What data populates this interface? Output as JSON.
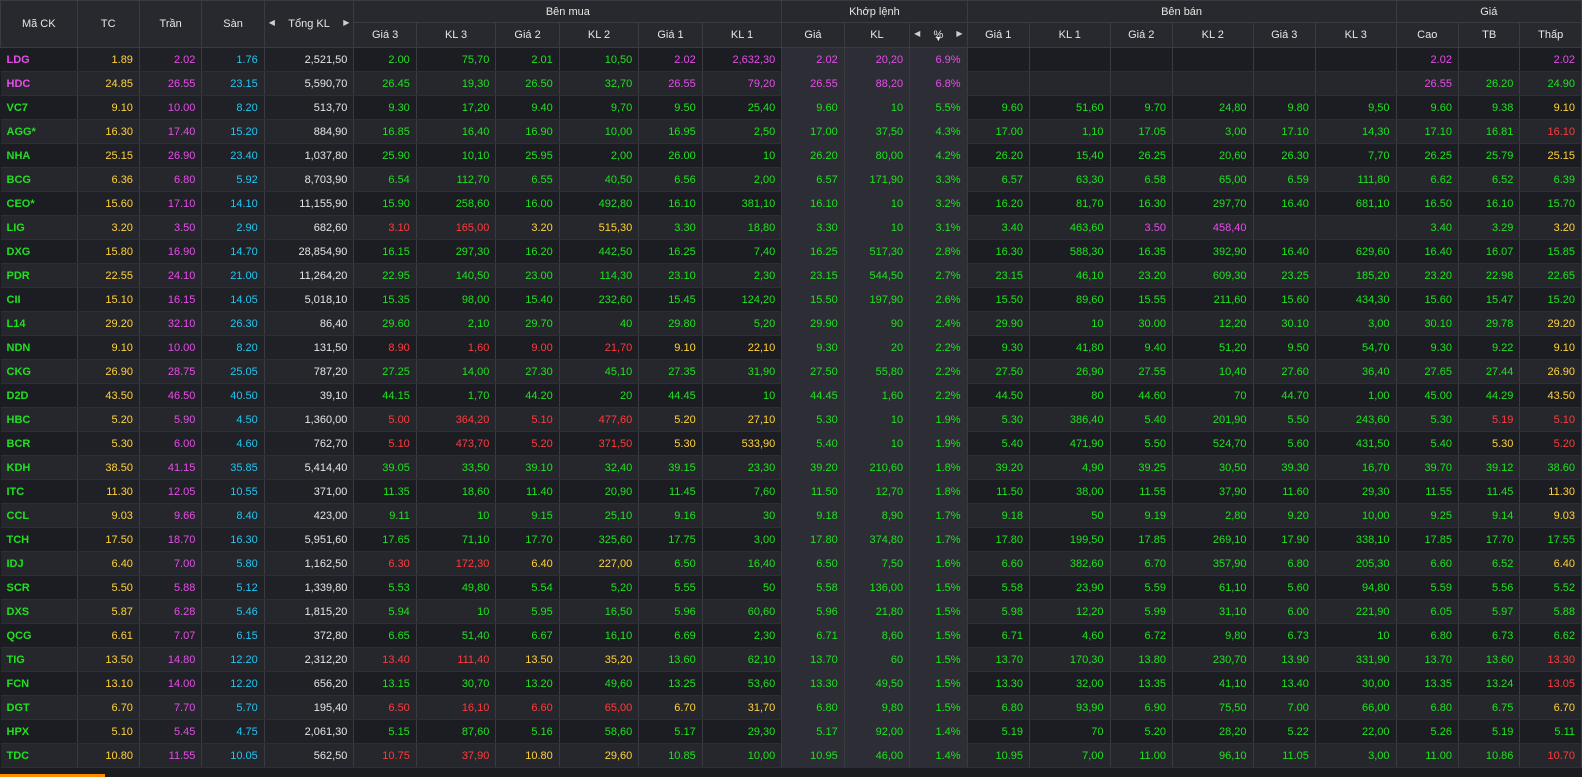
{
  "header": {
    "symbol": "Mã CK",
    "ref": "TC",
    "ceil": "Trần",
    "floor": "Sàn",
    "total_vol": "Tổng KL",
    "buy_group": "Bên mua",
    "match_group": "Khớp lệnh",
    "sell_group": "Bên bán",
    "price_group": "Giá",
    "buy_cols": [
      "Giá 3",
      "KL 3",
      "Giá 2",
      "KL 2",
      "Giá 1",
      "KL 1"
    ],
    "match_cols": [
      "Giá",
      "KL",
      "%"
    ],
    "sell_cols": [
      "Giá 1",
      "KL 1",
      "Giá 2",
      "KL 2",
      "Giá 3",
      "KL 3"
    ],
    "price_cols": [
      "Cao",
      "TB",
      "Thấp"
    ],
    "left_arrow": "◀",
    "right_arrow": "▶",
    "sort_desc": "▼"
  },
  "colors": {
    "green": "#20e020",
    "red": "#ff3b3b",
    "yellow": "#ffd33a",
    "purple": "#e74ce9",
    "cyan": "#22c6f2",
    "white": "#e6e6e6",
    "accent_bar": "#ff8a00"
  },
  "rows": [
    {
      "s": "LDG",
      "tc": "1.89",
      "ceil": "2.02",
      "floor": "1.76",
      "vol": "2,521,50",
      "sc": "p",
      "c": [
        "2.00",
        "75,70",
        "2.01",
        "10,50",
        "2.02",
        "2,632,30",
        "2.02",
        "20,20",
        "6.9%",
        "",
        "",
        "",
        "",
        "",
        "",
        "2.02",
        "",
        "2.02"
      ],
      "k": "gggggpppppp------p-p"
    },
    {
      "s": "HDC",
      "tc": "24.85",
      "ceil": "26.55",
      "floor": "23.15",
      "vol": "5,590,70",
      "sc": "p",
      "c": [
        "26.45",
        "19,30",
        "26.50",
        "32,70",
        "26.55",
        "79,20",
        "26.55",
        "88,20",
        "6.8%",
        "",
        "",
        "",
        "",
        "",
        "",
        "26.55",
        "26.20",
        "24.90"
      ],
      "k": "ggggpppppp------pgg"
    },
    {
      "s": "VC7",
      "tc": "9.10",
      "ceil": "10.00",
      "floor": "8.20",
      "vol": "513,70",
      "sc": "g",
      "c": [
        "9.30",
        "17,20",
        "9.40",
        "9,70",
        "9.50",
        "25,40",
        "9.60",
        "10",
        "5.5%",
        "9.60",
        "51,60",
        "9.70",
        "24,80",
        "9.80",
        "9,50",
        "9.60",
        "9.38",
        "9.10"
      ],
      "k": "gggggggggggggggggggy"
    },
    {
      "s": "AGG*",
      "tc": "16.30",
      "ceil": "17.40",
      "floor": "15.20",
      "vol": "884,90",
      "sc": "g",
      "c": [
        "16.85",
        "16,40",
        "16.90",
        "10,00",
        "16.95",
        "2,50",
        "17.00",
        "37,50",
        "4.3%",
        "17.00",
        "1,10",
        "17.05",
        "3,00",
        "17.10",
        "14,30",
        "17.10",
        "16.81",
        "16.10"
      ],
      "k": "ggggggggggggggggggr"
    },
    {
      "s": "NHA",
      "tc": "25.15",
      "ceil": "26.90",
      "floor": "23.40",
      "vol": "1,037,80",
      "sc": "g",
      "c": [
        "25.90",
        "10,10",
        "25.95",
        "2,00",
        "26.00",
        "10",
        "26.20",
        "80,00",
        "4.2%",
        "26.20",
        "15,40",
        "26.25",
        "20,60",
        "26.30",
        "7,70",
        "26.25",
        "25.79",
        "25.15"
      ],
      "k": "ggggggggggggggggggy"
    },
    {
      "s": "BCG",
      "tc": "6.36",
      "ceil": "6.80",
      "floor": "5.92",
      "vol": "8,703,90",
      "sc": "g",
      "c": [
        "6.54",
        "112,70",
        "6.55",
        "40,50",
        "6.56",
        "2,00",
        "6.57",
        "171,90",
        "3.3%",
        "6.57",
        "63,30",
        "6.58",
        "65,00",
        "6.59",
        "111,80",
        "6.62",
        "6.52",
        "6.39"
      ],
      "k": "ggggggggggggggggggg"
    },
    {
      "s": "CEO*",
      "tc": "15.60",
      "ceil": "17.10",
      "floor": "14.10",
      "vol": "11,155,90",
      "sc": "g",
      "c": [
        "15.90",
        "258,60",
        "16.00",
        "492,80",
        "16.10",
        "381,10",
        "16.10",
        "10",
        "3.2%",
        "16.20",
        "81,70",
        "16.30",
        "297,70",
        "16.40",
        "681,10",
        "16.50",
        "16.10",
        "15.70"
      ],
      "k": "ggggggggggggggggggg"
    },
    {
      "s": "LIG",
      "tc": "3.20",
      "ceil": "3.50",
      "floor": "2.90",
      "vol": "682,60",
      "sc": "g",
      "c": [
        "3.10",
        "165,00",
        "3.20",
        "515,30",
        "3.30",
        "18,80",
        "3.30",
        "10",
        "3.1%",
        "3.40",
        "463,60",
        "3.50",
        "458,40",
        "",
        "",
        "3.40",
        "3.29",
        "3.20"
      ],
      "k": "rryygggggggggpp--ggy"
    },
    {
      "s": "DXG",
      "tc": "15.80",
      "ceil": "16.90",
      "floor": "14.70",
      "vol": "28,854,90",
      "sc": "g",
      "c": [
        "16.15",
        "297,30",
        "16.20",
        "442,50",
        "16.25",
        "7,40",
        "16.25",
        "517,30",
        "2.8%",
        "16.30",
        "588,30",
        "16.35",
        "392,90",
        "16.40",
        "629,60",
        "16.40",
        "16.07",
        "15.85"
      ],
      "k": "ggggggggggggggggggg"
    },
    {
      "s": "PDR",
      "tc": "22.55",
      "ceil": "24.10",
      "floor": "21.00",
      "vol": "11,264,20",
      "sc": "g",
      "c": [
        "22.95",
        "140,50",
        "23.00",
        "114,30",
        "23.10",
        "2,30",
        "23.15",
        "544,50",
        "2.7%",
        "23.15",
        "46,10",
        "23.20",
        "609,30",
        "23.25",
        "185,20",
        "23.20",
        "22.98",
        "22.65"
      ],
      "k": "ggggggggggggggggggg"
    },
    {
      "s": "CII",
      "tc": "15.10",
      "ceil": "16.15",
      "floor": "14.05",
      "vol": "5,018,10",
      "sc": "g",
      "c": [
        "15.35",
        "98,00",
        "15.40",
        "232,60",
        "15.45",
        "124,20",
        "15.50",
        "197,90",
        "2.6%",
        "15.50",
        "89,60",
        "15.55",
        "211,60",
        "15.60",
        "434,30",
        "15.60",
        "15.47",
        "15.20"
      ],
      "k": "ggggggggggggggggggg"
    },
    {
      "s": "L14",
      "tc": "29.20",
      "ceil": "32.10",
      "floor": "26.30",
      "vol": "86,40",
      "sc": "g",
      "c": [
        "29.60",
        "2,10",
        "29.70",
        "40",
        "29.80",
        "5,20",
        "29.90",
        "90",
        "2.4%",
        "29.90",
        "10",
        "30.00",
        "12,20",
        "30.10",
        "3,00",
        "30.10",
        "29.78",
        "29.20"
      ],
      "k": "ggggggggggggggggggy"
    },
    {
      "s": "NDN",
      "tc": "9.10",
      "ceil": "10.00",
      "floor": "8.20",
      "vol": "131,50",
      "sc": "g",
      "c": [
        "8.90",
        "1,60",
        "9.00",
        "21,70",
        "9.10",
        "22,10",
        "9.30",
        "20",
        "2.2%",
        "9.30",
        "41,80",
        "9.40",
        "51,20",
        "9.50",
        "54,70",
        "9.30",
        "9.22",
        "9.10"
      ],
      "k": "rrrryyggggggggggggggy"
    },
    {
      "s": "CKG",
      "tc": "26.90",
      "ceil": "28.75",
      "floor": "25.05",
      "vol": "787,20",
      "sc": "g",
      "c": [
        "27.25",
        "14,00",
        "27.30",
        "45,10",
        "27.35",
        "31,90",
        "27.50",
        "55,80",
        "2.2%",
        "27.50",
        "26,90",
        "27.55",
        "10,40",
        "27.60",
        "36,40",
        "27.65",
        "27.44",
        "26.90"
      ],
      "k": "ggggggggggggggggggy"
    },
    {
      "s": "D2D",
      "tc": "43.50",
      "ceil": "46.50",
      "floor": "40.50",
      "vol": "39,10",
      "sc": "g",
      "c": [
        "44.15",
        "1,70",
        "44.20",
        "20",
        "44.45",
        "10",
        "44.45",
        "1,60",
        "2.2%",
        "44.50",
        "80",
        "44.60",
        "70",
        "44.70",
        "1,00",
        "45.00",
        "44.29",
        "43.50"
      ],
      "k": "ggggggggggggggggggy"
    },
    {
      "s": "HBC",
      "tc": "5.20",
      "ceil": "5.90",
      "floor": "4.50",
      "vol": "1,360,00",
      "sc": "g",
      "c": [
        "5.00",
        "364,20",
        "5.10",
        "477,60",
        "5.20",
        "27,10",
        "5.30",
        "10",
        "1.9%",
        "5.30",
        "386,40",
        "5.40",
        "201,90",
        "5.50",
        "243,60",
        "5.30",
        "5.19",
        "5.10"
      ],
      "k": "rrrryyggggggggggggrr"
    },
    {
      "s": "BCR",
      "tc": "5.30",
      "ceil": "6.00",
      "floor": "4.60",
      "vol": "762,70",
      "sc": "g",
      "c": [
        "5.10",
        "473,70",
        "5.20",
        "371,50",
        "5.30",
        "533,90",
        "5.40",
        "10",
        "1.9%",
        "5.40",
        "471,90",
        "5.50",
        "524,70",
        "5.60",
        "431,50",
        "5.40",
        "5.30",
        "5.20"
      ],
      "k": "rrrryygggggggggggggyr"
    },
    {
      "s": "KDH",
      "tc": "38.50",
      "ceil": "41.15",
      "floor": "35.85",
      "vol": "5,414,40",
      "sc": "g",
      "c": [
        "39.05",
        "33,50",
        "39.10",
        "32,40",
        "39.15",
        "23,30",
        "39.20",
        "210,60",
        "1.8%",
        "39.20",
        "4,90",
        "39.25",
        "30,50",
        "39.30",
        "16,70",
        "39.70",
        "39.12",
        "38.60"
      ],
      "k": "ggggggggggggggggggg"
    },
    {
      "s": "ITC",
      "tc": "11.30",
      "ceil": "12.05",
      "floor": "10.55",
      "vol": "371,00",
      "sc": "g",
      "c": [
        "11.35",
        "18,60",
        "11.40",
        "20,90",
        "11.45",
        "7,60",
        "11.50",
        "12,70",
        "1.8%",
        "11.50",
        "38,00",
        "11.55",
        "37,90",
        "11.60",
        "29,30",
        "11.55",
        "11.45",
        "11.30"
      ],
      "k": "ggggggggggggggggggy"
    },
    {
      "s": "CCL",
      "tc": "9.03",
      "ceil": "9.66",
      "floor": "8.40",
      "vol": "423,00",
      "sc": "g",
      "c": [
        "9.11",
        "10",
        "9.15",
        "25,10",
        "9.16",
        "30",
        "9.18",
        "8,90",
        "1.7%",
        "9.18",
        "50",
        "9.19",
        "2,80",
        "9.20",
        "10,00",
        "9.25",
        "9.14",
        "9.03"
      ],
      "k": "ggggggggggggggggggy"
    },
    {
      "s": "TCH",
      "tc": "17.50",
      "ceil": "18.70",
      "floor": "16.30",
      "vol": "5,951,60",
      "sc": "g",
      "c": [
        "17.65",
        "71,10",
        "17.70",
        "325,60",
        "17.75",
        "3,00",
        "17.80",
        "374,80",
        "1.7%",
        "17.80",
        "199,50",
        "17.85",
        "269,10",
        "17.90",
        "338,10",
        "17.85",
        "17.70",
        "17.55"
      ],
      "k": "ggggggggggggggggggg"
    },
    {
      "s": "IDJ",
      "tc": "6.40",
      "ceil": "7.00",
      "floor": "5.80",
      "vol": "1,162,50",
      "sc": "g",
      "c": [
        "6.30",
        "172,30",
        "6.40",
        "227,00",
        "6.50",
        "16,40",
        "6.50",
        "7,50",
        "1.6%",
        "6.60",
        "382,60",
        "6.70",
        "357,90",
        "6.80",
        "205,30",
        "6.60",
        "6.52",
        "6.40"
      ],
      "k": "rryyggggggggggggggy"
    },
    {
      "s": "SCR",
      "tc": "5.50",
      "ceil": "5.88",
      "floor": "5.12",
      "vol": "1,339,80",
      "sc": "g",
      "c": [
        "5.53",
        "49,80",
        "5.54",
        "5,20",
        "5.55",
        "50",
        "5.58",
        "136,00",
        "1.5%",
        "5.58",
        "23,90",
        "5.59",
        "61,10",
        "5.60",
        "94,80",
        "5.59",
        "5.56",
        "5.52"
      ],
      "k": "ggggggggggggggggggg"
    },
    {
      "s": "DXS",
      "tc": "5.87",
      "ceil": "6.28",
      "floor": "5.46",
      "vol": "1,815,20",
      "sc": "g",
      "c": [
        "5.94",
        "10",
        "5.95",
        "16,50",
        "5.96",
        "60,60",
        "5.96",
        "21,80",
        "1.5%",
        "5.98",
        "12,20",
        "5.99",
        "31,10",
        "6.00",
        "221,90",
        "6.05",
        "5.97",
        "5.88"
      ],
      "k": "ggggggggggggggggggg"
    },
    {
      "s": "QCG",
      "tc": "6.61",
      "ceil": "7.07",
      "floor": "6.15",
      "vol": "372,80",
      "sc": "g",
      "c": [
        "6.65",
        "51,40",
        "6.67",
        "16,10",
        "6.69",
        "2,30",
        "6.71",
        "8,60",
        "1.5%",
        "6.71",
        "4,60",
        "6.72",
        "9,80",
        "6.73",
        "10",
        "6.80",
        "6.73",
        "6.62"
      ],
      "k": "ggggggggggggggggggg"
    },
    {
      "s": "TIG",
      "tc": "13.50",
      "ceil": "14.80",
      "floor": "12.20",
      "vol": "2,312,20",
      "sc": "g",
      "c": [
        "13.40",
        "111,40",
        "13.50",
        "35,20",
        "13.60",
        "62,10",
        "13.70",
        "60",
        "1.5%",
        "13.70",
        "170,30",
        "13.80",
        "230,70",
        "13.90",
        "331,90",
        "13.70",
        "13.60",
        "13.30"
      ],
      "k": "rryyggggggggggggggr"
    },
    {
      "s": "FCN",
      "tc": "13.10",
      "ceil": "14.00",
      "floor": "12.20",
      "vol": "656,20",
      "sc": "g",
      "c": [
        "13.15",
        "30,70",
        "13.20",
        "49,60",
        "13.25",
        "53,60",
        "13.30",
        "49,50",
        "1.5%",
        "13.30",
        "32,00",
        "13.35",
        "41,10",
        "13.40",
        "30,00",
        "13.35",
        "13.24",
        "13.05"
      ],
      "k": "ggggggggggggggggggr"
    },
    {
      "s": "DGT",
      "tc": "6.70",
      "ceil": "7.70",
      "floor": "5.70",
      "vol": "195,40",
      "sc": "g",
      "c": [
        "6.50",
        "16,10",
        "6.60",
        "65,00",
        "6.70",
        "31,70",
        "6.80",
        "9,80",
        "1.5%",
        "6.80",
        "93,90",
        "6.90",
        "75,50",
        "7.00",
        "66,00",
        "6.80",
        "6.75",
        "6.70"
      ],
      "k": "rrrryyggggggggggggggy"
    },
    {
      "s": "HPX",
      "tc": "5.10",
      "ceil": "5.45",
      "floor": "4.75",
      "vol": "2,061,30",
      "sc": "g",
      "c": [
        "5.15",
        "87,60",
        "5.16",
        "58,60",
        "5.17",
        "29,30",
        "5.17",
        "92,00",
        "1.4%",
        "5.19",
        "70",
        "5.20",
        "28,20",
        "5.22",
        "22,00",
        "5.26",
        "5.19",
        "5.11"
      ],
      "k": "ggggggggggggggggggg"
    },
    {
      "s": "TDC",
      "tc": "10.80",
      "ceil": "11.55",
      "floor": "10.05",
      "vol": "562,50",
      "sc": "g",
      "c": [
        "10.75",
        "37,90",
        "10.80",
        "29,60",
        "10.85",
        "10,00",
        "10.95",
        "46,00",
        "1.4%",
        "10.95",
        "7,00",
        "11.00",
        "96,10",
        "11.05",
        "3,00",
        "11.00",
        "10.86",
        "10.70"
      ],
      "k": "rryyggggggggggggggr"
    }
  ]
}
